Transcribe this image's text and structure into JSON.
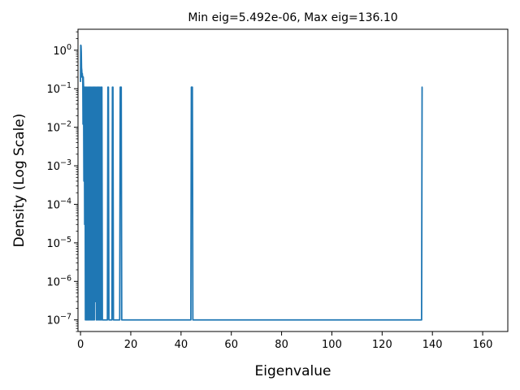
{
  "chart_data": {
    "type": "line",
    "title": "Min eig=5.492e-06, Max eig=136.10",
    "xlabel": "Eigenvalue",
    "ylabel": "Density (Log Scale)",
    "xlim": [
      -1,
      170
    ],
    "ylim": [
      5e-08,
      3.5
    ],
    "yscale": "log",
    "grid": false,
    "line_color": "#1f77b4",
    "x_ticks": [
      0,
      20,
      40,
      60,
      80,
      100,
      120,
      140,
      160
    ],
    "x_tick_labels": [
      "0",
      "20",
      "40",
      "60",
      "80",
      "100",
      "120",
      "140",
      "160"
    ],
    "y_ticks": [
      1e-07,
      1e-06,
      1e-05,
      0.0001,
      0.001,
      0.01,
      0.1,
      1
    ],
    "y_tick_labels": [
      {
        "base": "10",
        "exp": "−7"
      },
      {
        "base": "10",
        "exp": "−6"
      },
      {
        "base": "10",
        "exp": "−5"
      },
      {
        "base": "10",
        "exp": "−4"
      },
      {
        "base": "10",
        "exp": "−3"
      },
      {
        "base": "10",
        "exp": "−2"
      },
      {
        "base": "10",
        "exp": "−1"
      },
      {
        "base": "10",
        "exp": "0"
      }
    ],
    "series": [
      {
        "x": [
          0.0,
          0.05,
          0.1,
          0.2,
          0.3,
          0.4,
          0.5,
          0.6,
          0.7,
          0.8,
          0.9,
          1.0,
          1.1,
          1.2,
          1.35,
          1.5,
          1.65,
          1.8,
          1.95,
          2.1,
          2.3,
          2.5,
          2.7,
          2.9,
          3.1,
          3.3,
          3.5,
          3.7,
          3.9,
          4.1,
          4.3,
          4.5,
          4.7,
          4.9,
          5.1,
          5.3,
          5.5,
          5.7,
          5.9,
          6.1,
          6.3,
          6.5,
          6.7,
          6.9,
          7.1,
          7.3,
          7.5,
          7.7,
          7.9,
          8.1,
          8.3,
          8.5,
          8.7,
          10.7,
          10.9,
          11.1,
          11.3,
          12.5,
          12.7,
          12.9,
          13.1,
          15.6,
          15.8,
          16.0,
          16.2,
          16.4,
          43.9,
          44.1,
          44.3,
          44.5,
          44.7,
          135.7,
          135.9,
          136.1
        ],
        "y": [
          0.15,
          0.5,
          1.35,
          1.3,
          0.9,
          0.35,
          0.3,
          0.2,
          0.25,
          0.2,
          0.21,
          0.012,
          0.2,
          0.12,
          0.0004,
          0.11,
          3e-05,
          0.11,
          1e-07,
          0.11,
          1e-07,
          0.11,
          1e-07,
          0.11,
          1e-07,
          0.11,
          1e-07,
          0.11,
          1e-07,
          0.11,
          1e-07,
          0.11,
          1e-07,
          0.11,
          1e-07,
          0.11,
          1e-07,
          0.11,
          3e-07,
          0.11,
          1e-07,
          0.11,
          1e-07,
          0.11,
          1e-07,
          0.11,
          1e-07,
          0.11,
          1e-07,
          0.11,
          1e-07,
          0.11,
          1e-07,
          1e-07,
          0.11,
          0.11,
          1e-07,
          1e-07,
          0.11,
          0.11,
          1e-07,
          1e-07,
          0.11,
          0.11,
          0.11,
          1e-07,
          1e-07,
          0.11,
          0.11,
          0.11,
          1e-07,
          1e-07,
          0.11,
          0.11
        ]
      }
    ]
  }
}
